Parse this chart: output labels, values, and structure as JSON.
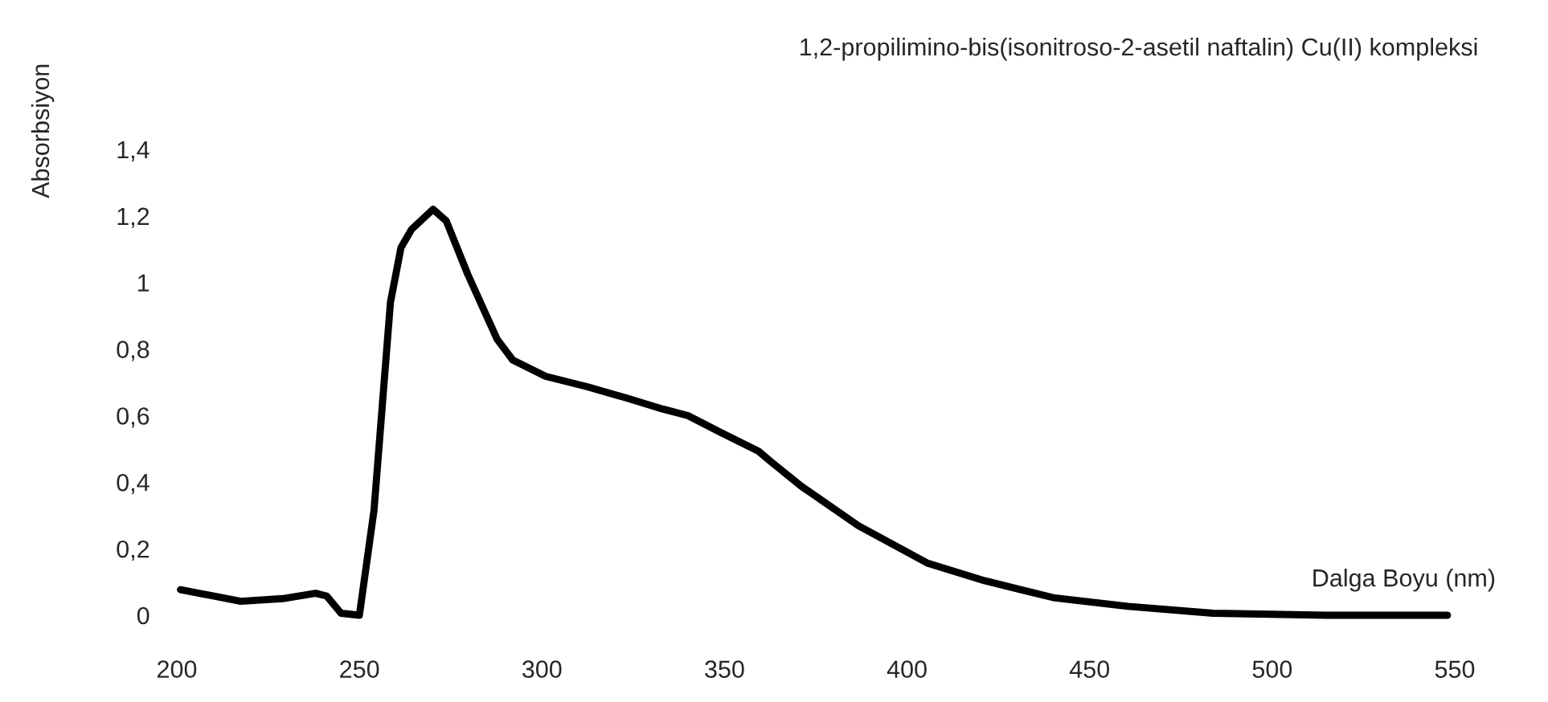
{
  "chart_data": {
    "type": "line",
    "title": "1,2-propilimino-bis(isonitroso-2-asetil naftalin) Cu(II) kompleksi",
    "xlabel": "Dalga Boyu (nm)",
    "ylabel": "Absorbsiyon",
    "series": [
      {
        "color": "#000000",
        "x": [
          201,
          217.5,
          229,
          238,
          241,
          245,
          250,
          254,
          258.5,
          261.4,
          264.3,
          270.2,
          273.8,
          279.7,
          287.7,
          292,
          301,
          312.6,
          322.8,
          333,
          340,
          349,
          359.3,
          363,
          371,
          386.7,
          405.5,
          421.2,
          440,
          460.4,
          483.8,
          515,
          548
        ],
        "values": [
          0.077,
          0.042,
          0.05,
          0.066,
          0.058,
          0.006,
          0.0,
          0.315,
          0.94,
          1.105,
          1.16,
          1.22,
          1.185,
          1.024,
          0.83,
          0.767,
          0.718,
          0.686,
          0.654,
          0.62,
          0.6,
          0.549,
          0.493,
          0.459,
          0.388,
          0.269,
          0.157,
          0.104,
          0.053,
          0.027,
          0.006,
          0.0,
          0.0
        ]
      }
    ],
    "xlim": [
      200,
      550
    ],
    "xticks": [
      200,
      250,
      300,
      350,
      400,
      450,
      500,
      550
    ],
    "ylim": [
      0,
      1.4
    ],
    "yticks": [
      0,
      {
        "value": 0.2,
        "label": "0,2"
      },
      {
        "value": 0.4,
        "label": "0,4"
      },
      {
        "value": 0.6,
        "label": "0,6"
      },
      {
        "value": 0.8,
        "label": "0,8"
      },
      1,
      {
        "value": 1.2,
        "label": "1,2"
      },
      {
        "value": 1.4,
        "label": "1,4"
      }
    ],
    "grid": false,
    "marker": "none",
    "line_style": "solid"
  }
}
